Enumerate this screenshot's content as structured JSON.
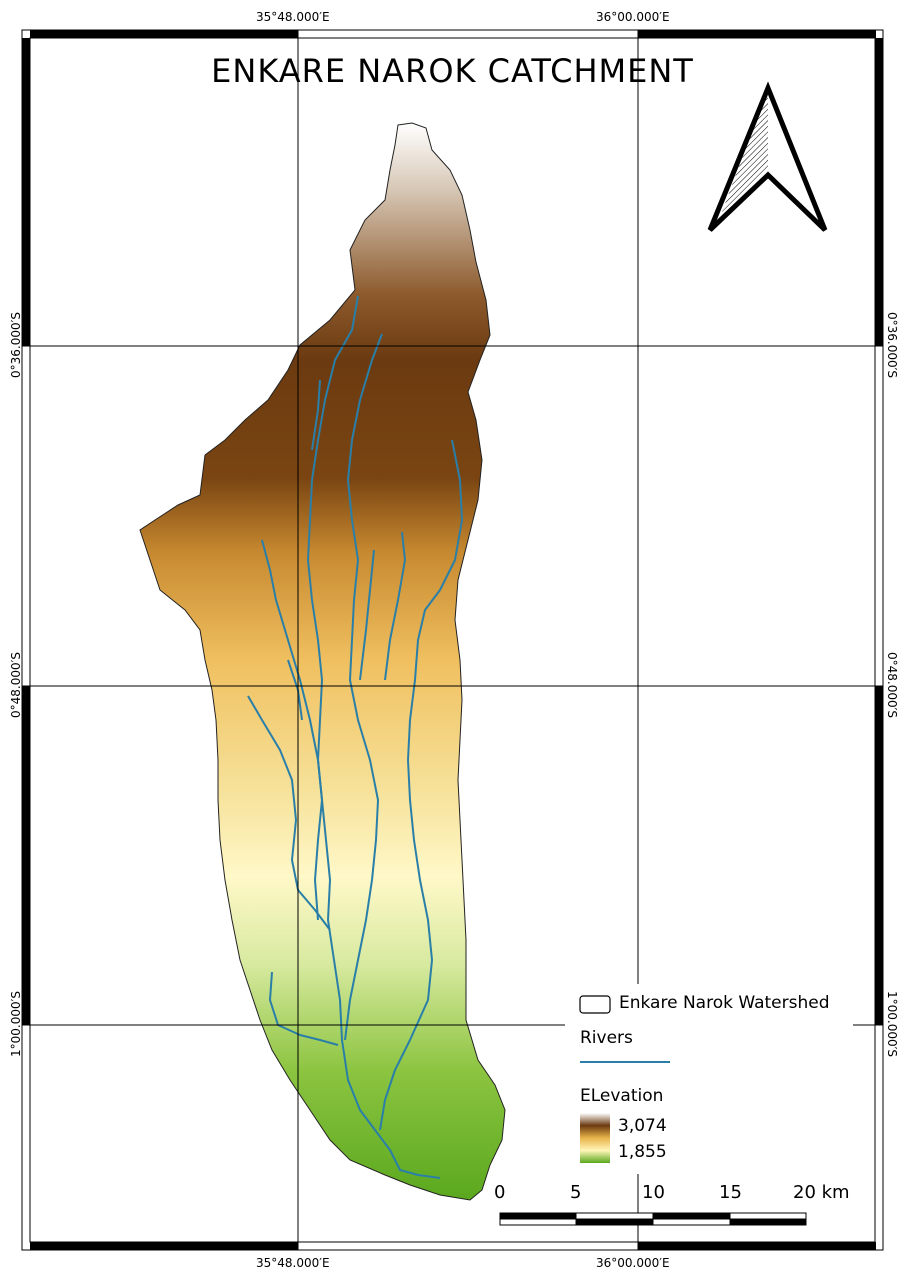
{
  "map": {
    "title": "ENKARE NAROK CATCHMENT",
    "grid_labels": {
      "lon": [
        "35°48.000′E",
        "36°00.000′E"
      ],
      "lat": [
        "0°36.000′S",
        "0°48.000′S",
        "1°00.000′S"
      ]
    },
    "legend": {
      "watershed_label": "Enkare Narok Watershed",
      "rivers_label": "Rivers",
      "elevation_title": "ELevation",
      "elevation_max": "3,074",
      "elevation_min": "1,855",
      "colors": {
        "high": "#ffffff",
        "upper": "#6b3a10",
        "mid": "#e8b44a",
        "lower": "#fff6b8",
        "low": "#5aa81e",
        "river": "#2a7fa8"
      }
    },
    "scale_bar": {
      "ticks": [
        "0",
        "5",
        "10",
        "15",
        "20 km"
      ]
    },
    "north_arrow_icon": "north-arrow-icon"
  }
}
